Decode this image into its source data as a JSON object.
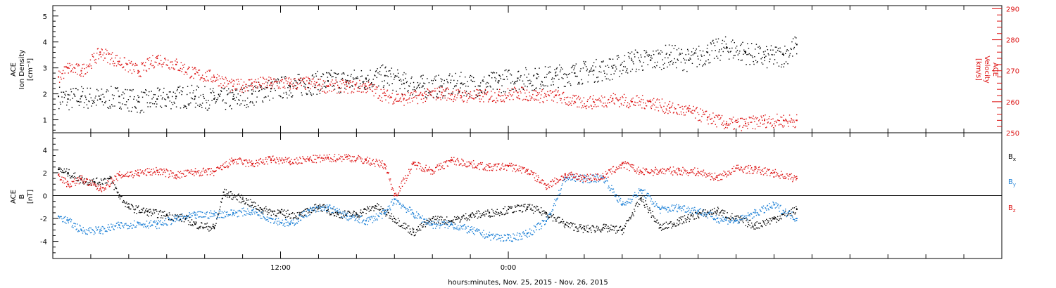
{
  "chart_data": [
    {
      "type": "scatter",
      "panel": "top",
      "ylabel_left": [
        "ACE",
        "Ion Density",
        "[cm⁻³]"
      ],
      "ylabel_right": [
        "ACE",
        "Velocity",
        "[km/s]"
      ],
      "ylim_left": [
        0.5,
        5.4
      ],
      "ylim_right": [
        250,
        291
      ],
      "yticks_left": [
        1,
        2,
        3,
        4,
        5
      ],
      "yticks_right": [
        250,
        260,
        270,
        280,
        290
      ],
      "colors": {
        "density": "#000000",
        "velocity": "#dd1111"
      },
      "series": [
        {
          "name": "Ion Density",
          "axis": "left",
          "color": "#000000",
          "x": [
            -11.7,
            -11.2,
            -10.5,
            -9.5,
            -8.5,
            -7.5,
            -6.5,
            -5.5,
            -4.5,
            -3.5,
            -2.5,
            -1.5,
            -0.5,
            0.5,
            1.5,
            2.5,
            3.5,
            4.5,
            5.5,
            6.5,
            7.5,
            8.5,
            9.5,
            10.5,
            11.5,
            12.5,
            13.5,
            14.5,
            15.5,
            16.5,
            17.5,
            18.5,
            19.5,
            20.5,
            21.5,
            22.5,
            23.5,
            24.5,
            25.5,
            26.5,
            27.2
          ],
          "y": [
            1.9,
            1.8,
            1.9,
            1.8,
            1.9,
            1.7,
            1.8,
            1.9,
            1.9,
            1.8,
            1.8,
            2.0,
            2.2,
            2.3,
            2.4,
            2.5,
            2.5,
            2.6,
            2.7,
            2.4,
            2.3,
            2.3,
            2.4,
            2.3,
            2.5,
            2.6,
            2.6,
            2.7,
            2.8,
            2.9,
            3.0,
            3.3,
            3.3,
            3.5,
            3.3,
            3.6,
            3.8,
            3.6,
            3.4,
            3.5,
            3.9
          ]
        },
        {
          "name": "Velocity",
          "axis": "right",
          "color": "#dd1111",
          "x": [
            -11.7,
            -11.2,
            -10.5,
            -9.5,
            -8.5,
            -7.5,
            -6.5,
            -5.5,
            -4.5,
            -3.5,
            -2.5,
            -1.5,
            -0.5,
            0.5,
            1.5,
            2.5,
            3.5,
            4.5,
            5.5,
            6.5,
            7.5,
            8.5,
            9.5,
            10.5,
            11.5,
            12.5,
            13.5,
            14.5,
            15.5,
            16.5,
            17.5,
            18.5,
            19.5,
            20.5,
            21.5,
            22.5,
            23.5,
            24.5,
            25.5,
            26.5,
            27.2
          ],
          "y": [
            268,
            271,
            270,
            276,
            273,
            270,
            274,
            272,
            269,
            268,
            265,
            266,
            266,
            266,
            266,
            265,
            265,
            265,
            262,
            261,
            262,
            263,
            262,
            262,
            262,
            263,
            262,
            262,
            260,
            260,
            261,
            260,
            260,
            258,
            257,
            255,
            253,
            253,
            254,
            254,
            254
          ]
        }
      ]
    },
    {
      "type": "scatter",
      "panel": "bottom",
      "ylabel": [
        "ACE",
        "B",
        "[nT]"
      ],
      "ylim": [
        -5.5,
        5.5
      ],
      "yticks": [
        -4,
        -2,
        0,
        2,
        4
      ],
      "zero_line": true,
      "legend_placement": "right",
      "series": [
        {
          "name": "Bx",
          "label_main": "B",
          "label_sub": "x",
          "color": "#000000",
          "x": [
            -11.7,
            -11.2,
            -10.5,
            -9.8,
            -9.0,
            -8.5,
            -8.0,
            -7.0,
            -6.0,
            -5.0,
            -4.5,
            -3.5,
            -3.0,
            -2.0,
            -1.0,
            0.0,
            1.0,
            2.0,
            3.0,
            4.0,
            5.0,
            6.0,
            7.0,
            8.0,
            9.0,
            10.0,
            11.0,
            12.0,
            13.0,
            14.0,
            15.0,
            16.0,
            17.0,
            18.0,
            19.0,
            20.0,
            21.0,
            22.0,
            23.0,
            24.0,
            25.0,
            26.0,
            27.2
          ],
          "y": [
            2.3,
            2.0,
            1.4,
            1.2,
            1.5,
            0.0,
            -1.0,
            -1.4,
            -1.7,
            -2.0,
            -2.5,
            -2.8,
            0.3,
            -0.3,
            -1.2,
            -1.5,
            -1.7,
            -0.9,
            -1.6,
            -1.6,
            -0.9,
            -2.0,
            -3.2,
            -2.0,
            -2.2,
            -1.7,
            -1.5,
            -1.2,
            -1.0,
            -1.5,
            -2.5,
            -2.9,
            -2.8,
            -3.0,
            -0.2,
            -2.8,
            -2.2,
            -1.6,
            -1.3,
            -2.0,
            -2.6,
            -2.0,
            -1.2
          ]
        },
        {
          "name": "By",
          "label_main": "B",
          "label_sub": "y",
          "color": "#1a7fd6",
          "x": [
            -11.7,
            -11.2,
            -10.5,
            -9.5,
            -8.5,
            -7.5,
            -6.5,
            -5.5,
            -4.5,
            -3.5,
            -2.5,
            -1.5,
            -0.5,
            0.5,
            1.5,
            2.5,
            3.5,
            4.5,
            5.5,
            6.0,
            7.0,
            8.0,
            9.0,
            10.0,
            11.0,
            12.0,
            13.0,
            14.0,
            15.0,
            16.0,
            17.0,
            18.0,
            19.0,
            20.0,
            21.0,
            22.0,
            23.0,
            24.0,
            25.0,
            26.0,
            27.2
          ],
          "y": [
            -1.8,
            -2.2,
            -3.0,
            -3.0,
            -2.6,
            -2.4,
            -2.5,
            -2.0,
            -1.7,
            -1.6,
            -1.5,
            -1.3,
            -2.0,
            -2.5,
            -1.3,
            -1.0,
            -1.8,
            -2.2,
            -1.5,
            -0.3,
            -1.6,
            -2.5,
            -2.5,
            -3.0,
            -3.5,
            -3.7,
            -3.3,
            -2.2,
            1.6,
            1.5,
            1.6,
            -0.8,
            0.5,
            -1.2,
            -1.0,
            -1.3,
            -2.0,
            -2.2,
            -1.5,
            -0.8,
            -2.0
          ]
        },
        {
          "name": "Bz",
          "label_main": "B",
          "label_sub": "z",
          "color": "#dd1111",
          "x": [
            -11.7,
            -11.2,
            -10.5,
            -9.5,
            -8.5,
            -7.5,
            -6.5,
            -5.5,
            -4.5,
            -3.5,
            -2.5,
            -1.5,
            -0.5,
            0.5,
            1.5,
            2.5,
            3.5,
            4.5,
            5.5,
            6.0,
            7.0,
            8.0,
            9.0,
            10.0,
            11.0,
            12.0,
            13.0,
            14.0,
            15.0,
            16.0,
            17.0,
            18.0,
            19.0,
            20.0,
            21.0,
            22.0,
            23.0,
            24.0,
            25.0,
            26.0,
            27.2
          ],
          "y": [
            1.8,
            1.0,
            1.5,
            0.6,
            1.8,
            2.0,
            2.2,
            1.8,
            2.1,
            2.1,
            3.1,
            2.8,
            3.2,
            3.0,
            3.2,
            3.3,
            3.4,
            3.1,
            2.7,
            0.0,
            2.8,
            2.2,
            3.1,
            2.8,
            2.5,
            2.6,
            2.2,
            0.9,
            1.8,
            1.6,
            1.7,
            2.8,
            2.1,
            2.2,
            2.2,
            2.1,
            1.6,
            2.4,
            2.3,
            2.0,
            1.5
          ]
        }
      ]
    }
  ],
  "x_axis": {
    "xlim": [
      -12.0,
      38.0
    ],
    "ticks": [
      {
        "value": 0,
        "label": "12:00"
      },
      {
        "value": 12,
        "label": "0:00"
      }
    ],
    "minor_step": 2,
    "xlabel": "hours:minutes, Nov. 25, 2015 - Nov. 26, 2015"
  },
  "colors": {
    "axis": "#000000",
    "velocity_axis": "#dd1111",
    "background": "#ffffff"
  }
}
